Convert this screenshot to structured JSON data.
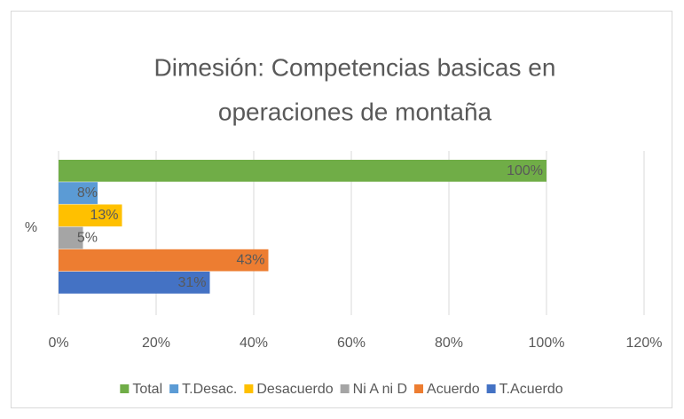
{
  "chart_data": {
    "type": "bar",
    "orientation": "horizontal",
    "title": [
      "Dimesión: Competencias basicas en",
      "operaciones de montaña"
    ],
    "categories": [
      "%"
    ],
    "series": [
      {
        "name": "Total",
        "color": "#70ad47",
        "values": [
          100
        ],
        "value_labels": [
          "100%"
        ]
      },
      {
        "name": "T.Desac.",
        "color": "#5b9bd5",
        "values": [
          8
        ],
        "value_labels": [
          "8%"
        ]
      },
      {
        "name": "Desacuerdo",
        "color": "#ffc000",
        "values": [
          13
        ],
        "value_labels": [
          "13%"
        ]
      },
      {
        "name": "Ni A ni D",
        "color": "#a5a5a5",
        "values": [
          5
        ],
        "value_labels": [
          "5%"
        ]
      },
      {
        "name": "Acuerdo",
        "color": "#ed7d31",
        "values": [
          43
        ],
        "value_labels": [
          "43%"
        ]
      },
      {
        "name": "T.Acuerdo",
        "color": "#4472c4",
        "values": [
          31
        ],
        "value_labels": [
          "31%"
        ]
      }
    ],
    "xlim": [
      0,
      120
    ],
    "xticks": [
      {
        "value": 0,
        "label": "0%"
      },
      {
        "value": 20,
        "label": "20%"
      },
      {
        "value": 40,
        "label": "40%"
      },
      {
        "value": 60,
        "label": "60%"
      },
      {
        "value": 80,
        "label": "80%"
      },
      {
        "value": 100,
        "label": "100%"
      },
      {
        "value": 120,
        "label": "120%"
      }
    ],
    "grid": true,
    "legend": "bottom"
  }
}
